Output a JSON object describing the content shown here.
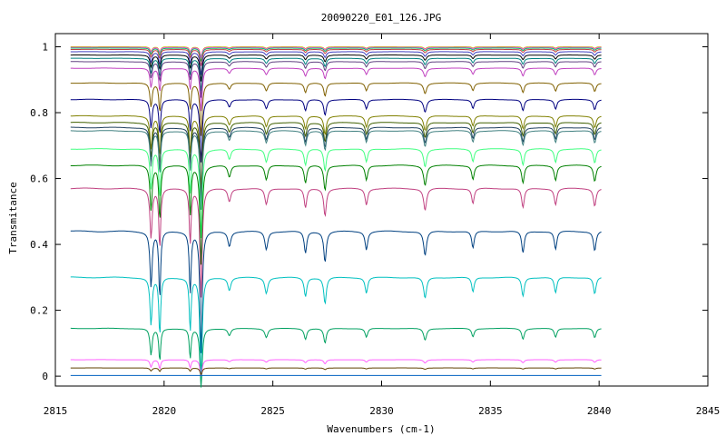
{
  "chart_data": {
    "type": "line",
    "title": "20090220_E01_126.JPG",
    "xlabel": "Wavenumbers (cm-1)",
    "ylabel": "Transmitance",
    "xlim": [
      2815,
      2845
    ],
    "ylim": [
      -0.03,
      1.04
    ],
    "x_range": [
      2815.7,
      2840.1
    ],
    "x_ticks": [
      2815,
      2820,
      2825,
      2830,
      2835,
      2840,
      2845
    ],
    "x_tick_labels": [
      "2815",
      "2820",
      "2825",
      "2830",
      "2835",
      "2840",
      "2845"
    ],
    "y_ticks": [
      0,
      0.2,
      0.4,
      0.6,
      0.8,
      1
    ],
    "y_tick_labels": [
      "0",
      "0.2",
      "0.4",
      "0.6",
      "0.8",
      "1"
    ],
    "grid": false,
    "legend": "none",
    "absorption_lines": [
      2819.4,
      2819.8,
      2821.2,
      2821.7,
      2823.0,
      2824.7,
      2826.5,
      2827.4,
      2829.3,
      2832.0,
      2834.2,
      2836.5,
      2838.0,
      2839.8
    ],
    "series": [
      {
        "baseline": 1.0,
        "depth": 0.03,
        "color": "#c0c000"
      },
      {
        "baseline": 0.998,
        "depth": 0.03,
        "color": "#ff40ff"
      },
      {
        "baseline": 0.996,
        "depth": 0.04,
        "color": "#00c060"
      },
      {
        "baseline": 0.992,
        "depth": 0.05,
        "color": "#c04040"
      },
      {
        "baseline": 0.985,
        "depth": 0.07,
        "color": "#4040c0"
      },
      {
        "baseline": 0.975,
        "depth": 0.08,
        "color": "#000000"
      },
      {
        "baseline": 0.965,
        "depth": 0.1,
        "color": "#008080"
      },
      {
        "baseline": 0.955,
        "depth": 0.11,
        "color": "#604080"
      },
      {
        "baseline": 0.935,
        "depth": 0.13,
        "color": "#c040c0"
      },
      {
        "baseline": 0.89,
        "depth": 0.16,
        "color": "#806000"
      },
      {
        "baseline": 0.84,
        "depth": 0.19,
        "color": "#000080"
      },
      {
        "baseline": 0.79,
        "depth": 0.22,
        "color": "#808000"
      },
      {
        "baseline": 0.77,
        "depth": 0.23,
        "color": "#406000"
      },
      {
        "baseline": 0.755,
        "depth": 0.24,
        "color": "#204060"
      },
      {
        "baseline": 0.745,
        "depth": 0.24,
        "color": "#408080"
      },
      {
        "baseline": 0.69,
        "depth": 0.27,
        "color": "#40ff80"
      },
      {
        "baseline": 0.64,
        "depth": 0.3,
        "color": "#008000"
      },
      {
        "baseline": 0.57,
        "depth": 0.33,
        "color": "#c04080"
      },
      {
        "baseline": 0.44,
        "depth": 0.37,
        "color": "#004080"
      },
      {
        "baseline": 0.3,
        "depth": 0.32,
        "color": "#00c0c0"
      },
      {
        "baseline": 0.145,
        "depth": 0.18,
        "color": "#00a060"
      },
      {
        "baseline": 0.05,
        "depth": 0.05,
        "color": "#ff60ff"
      },
      {
        "baseline": 0.025,
        "depth": 0.02,
        "color": "#604000"
      },
      {
        "baseline": 0.002,
        "depth": 0.0,
        "color": "#0060c0"
      }
    ]
  }
}
